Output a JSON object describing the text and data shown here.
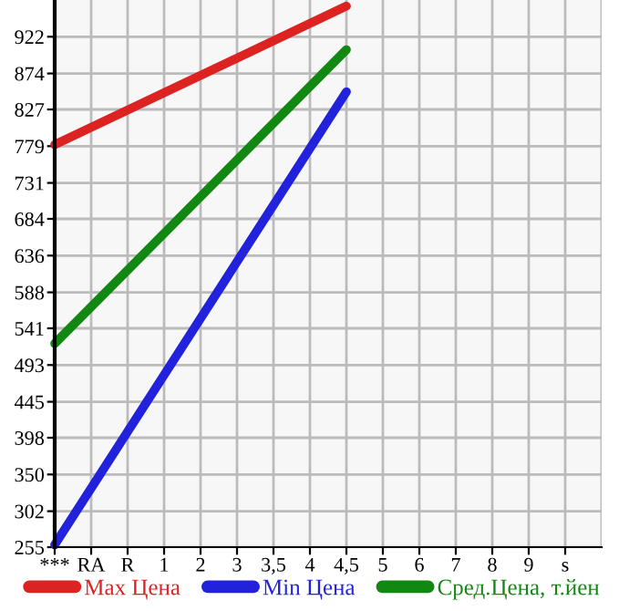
{
  "chart_data": {
    "type": "line",
    "categories": [
      "***",
      "RA",
      "R",
      "1",
      "2",
      "3",
      "3,5",
      "4",
      "4,5",
      "5",
      "6",
      "7",
      "8",
      "9",
      "s"
    ],
    "series": [
      {
        "name": "Max Цена",
        "color": "#dd2222",
        "values": [
          781,
          null,
          null,
          null,
          null,
          null,
          null,
          null,
          962,
          null,
          null,
          null,
          null,
          null,
          null
        ]
      },
      {
        "name": "Min Цена",
        "color": "#2222dd",
        "values": [
          258,
          null,
          null,
          null,
          null,
          null,
          null,
          null,
          850,
          null,
          null,
          null,
          null,
          null,
          null
        ]
      },
      {
        "name": "Сред.Цена, т.йен",
        "color": "#118811",
        "values": [
          521,
          null,
          null,
          null,
          null,
          null,
          null,
          null,
          905,
          null,
          null,
          null,
          null,
          null,
          null
        ]
      }
    ],
    "ylim": [
      255,
      970
    ],
    "yticks": [
      255,
      302,
      350,
      398,
      445,
      493,
      541,
      588,
      636,
      684,
      731,
      779,
      827,
      874,
      922
    ],
    "grid": true,
    "legend": "bottom",
    "marker": "none",
    "line_style": "solid"
  }
}
